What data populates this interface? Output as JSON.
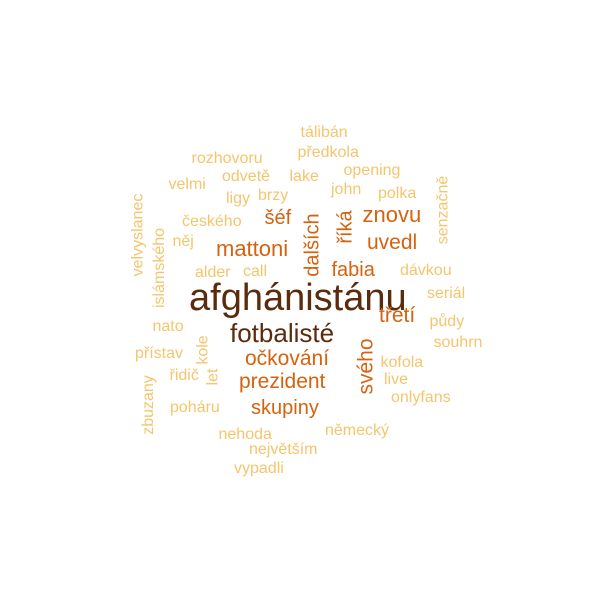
{
  "word_cloud": {
    "palette": {
      "dominant": "#5a2b0c",
      "strong": "#d5620f",
      "medium": "#e8922a",
      "light": "#f5c56c"
    },
    "words": [
      {
        "text": "afghánistánu",
        "tone": "dominant"
      },
      {
        "text": "fotbalisté",
        "tone": "dominant"
      },
      {
        "text": "mattoni",
        "tone": "strong"
      },
      {
        "text": "očkování",
        "tone": "strong"
      },
      {
        "text": "prezident",
        "tone": "strong"
      },
      {
        "text": "skupiny",
        "tone": "strong"
      },
      {
        "text": "znovu",
        "tone": "strong"
      },
      {
        "text": "uvedl",
        "tone": "strong"
      },
      {
        "text": "fabia",
        "tone": "strong"
      },
      {
        "text": "třetí",
        "tone": "strong"
      },
      {
        "text": "šéf",
        "tone": "strong"
      },
      {
        "text": "dalších",
        "tone": "strong"
      },
      {
        "text": "říká",
        "tone": "strong"
      },
      {
        "text": "svého",
        "tone": "strong"
      },
      {
        "text": "tálibán",
        "tone": "light"
      },
      {
        "text": "předkola",
        "tone": "light"
      },
      {
        "text": "rozhovoru",
        "tone": "light"
      },
      {
        "text": "opening",
        "tone": "light"
      },
      {
        "text": "odvetě",
        "tone": "light"
      },
      {
        "text": "lake",
        "tone": "light"
      },
      {
        "text": "velmi",
        "tone": "light"
      },
      {
        "text": "john",
        "tone": "light"
      },
      {
        "text": "polka",
        "tone": "light"
      },
      {
        "text": "ligy",
        "tone": "light"
      },
      {
        "text": "brzy",
        "tone": "light"
      },
      {
        "text": "českého",
        "tone": "light"
      },
      {
        "text": "něj",
        "tone": "light"
      },
      {
        "text": "alder",
        "tone": "light"
      },
      {
        "text": "call",
        "tone": "light"
      },
      {
        "text": "dávkou",
        "tone": "light"
      },
      {
        "text": "seriál",
        "tone": "light"
      },
      {
        "text": "půdy",
        "tone": "light"
      },
      {
        "text": "souhrn",
        "tone": "light"
      },
      {
        "text": "nato",
        "tone": "light"
      },
      {
        "text": "přístav",
        "tone": "light"
      },
      {
        "text": "kole",
        "tone": "light"
      },
      {
        "text": "kofola",
        "tone": "light"
      },
      {
        "text": "řidič",
        "tone": "light"
      },
      {
        "text": "let",
        "tone": "light"
      },
      {
        "text": "live",
        "tone": "light"
      },
      {
        "text": "poháru",
        "tone": "light"
      },
      {
        "text": "onlyfans",
        "tone": "light"
      },
      {
        "text": "nehoda",
        "tone": "light"
      },
      {
        "text": "německý",
        "tone": "light"
      },
      {
        "text": "největším",
        "tone": "light"
      },
      {
        "text": "vypadli",
        "tone": "light"
      },
      {
        "text": "velvyslanec",
        "tone": "light"
      },
      {
        "text": "islámského",
        "tone": "light"
      },
      {
        "text": "zbuzany",
        "tone": "light"
      },
      {
        "text": "senzačně",
        "tone": "light"
      }
    ]
  }
}
